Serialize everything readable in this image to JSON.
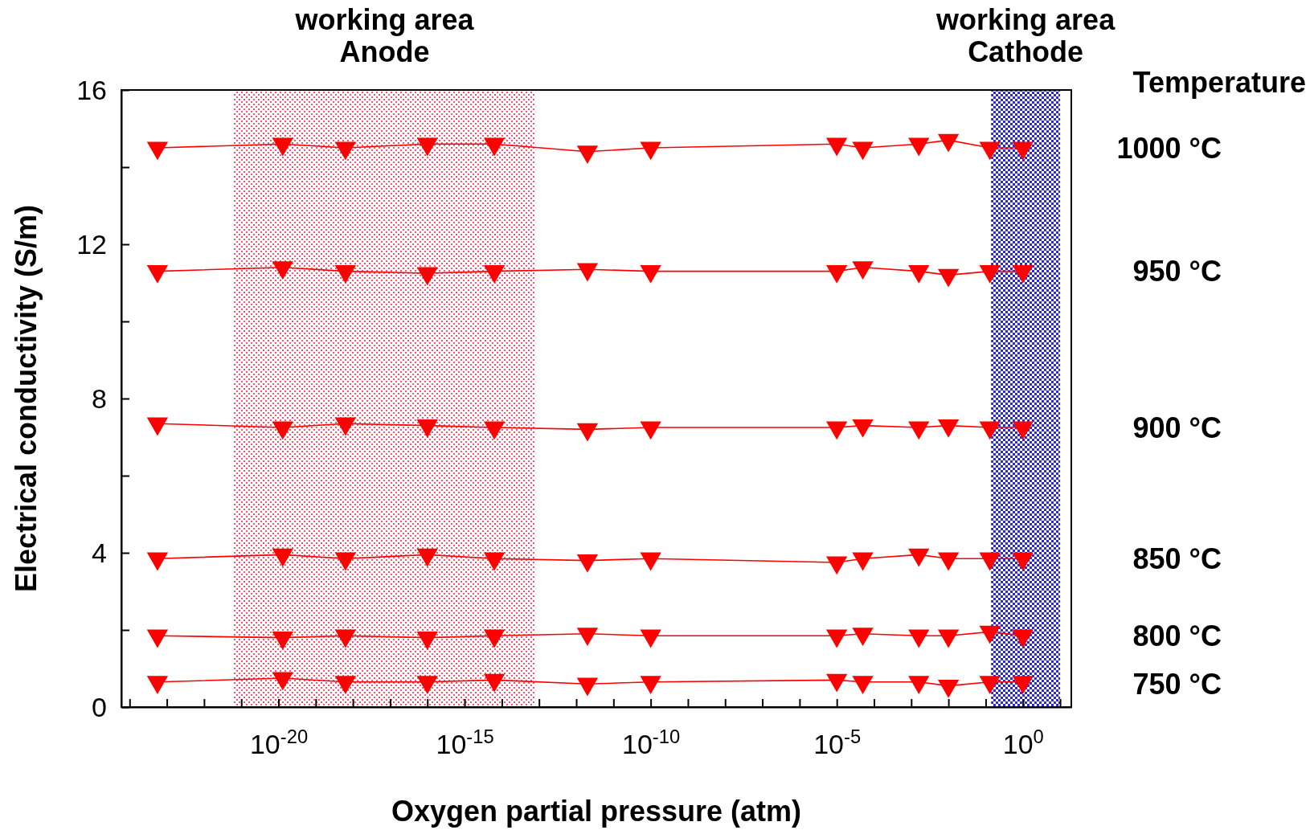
{
  "chart_data": {
    "type": "line",
    "xlabel": "Oxygen partial pressure  (atm)",
    "ylabel": "Electrical conductivity  (S/m)",
    "legend_title": "Temperature",
    "log": "x",
    "marker": "triangle-down",
    "line_style": "solid",
    "grid": false,
    "legend": "right",
    "x": [
      5.6e-24,
      1.3e-20,
      6.3e-19,
      1e-16,
      6.3e-15,
      2e-12,
      1e-10,
      1e-05,
      5e-05,
      0.0016,
      0.01,
      0.13,
      1
    ],
    "xlim": [
      6e-25,
      20
    ],
    "xticks": [
      {
        "value": 1e-24,
        "label": null
      },
      {
        "value": 1e-23,
        "label": null
      },
      {
        "value": 1e-22,
        "label": null
      },
      {
        "value": 1e-21,
        "label": null
      },
      {
        "value": 1e-20,
        "label": "10$^{-20}$"
      },
      {
        "value": 1e-19,
        "label": null
      },
      {
        "value": 1e-18,
        "label": null
      },
      {
        "value": 1e-17,
        "label": null
      },
      {
        "value": 1e-16,
        "label": null
      },
      {
        "value": 1e-15,
        "label": "10$^{-15}$"
      },
      {
        "value": 1e-14,
        "label": null
      },
      {
        "value": 1e-13,
        "label": null
      },
      {
        "value": 1e-12,
        "label": null
      },
      {
        "value": 1e-11,
        "label": null
      },
      {
        "value": 1e-10,
        "label": "10$^{-10}$"
      },
      {
        "value": 1e-09,
        "label": null
      },
      {
        "value": 1e-08,
        "label": null
      },
      {
        "value": 1e-07,
        "label": null
      },
      {
        "value": 1e-06,
        "label": null
      },
      {
        "value": 1e-05,
        "label": "10$^{-5}$"
      },
      {
        "value": 0.0001,
        "label": null
      },
      {
        "value": 0.001,
        "label": null
      },
      {
        "value": 0.01,
        "label": null
      },
      {
        "value": 0.1,
        "label": null
      },
      {
        "value": 1,
        "label": "10$^{0}$"
      },
      {
        "value": 10,
        "label": null
      }
    ],
    "ylim": [
      0,
      16
    ],
    "yticks": [
      0,
      {
        "value": 2,
        "label": null
      },
      4,
      {
        "value": 6,
        "label": null
      },
      8,
      {
        "value": 10,
        "label": null
      },
      12,
      {
        "value": 14,
        "label": null
      },
      16
    ],
    "bands": [
      {
        "axis": "x",
        "from": 6.3e-22,
        "to": 8e-14,
        "label": "working area\nAnode",
        "color": "#ff5070"
      },
      {
        "axis": "x",
        "from": 0.14,
        "to": 10,
        "label": "working area\nCathode",
        "color": "#2a2ad0"
      }
    ],
    "series": [
      {
        "name": "1000 °C",
        "color": "#ff0000",
        "values": [
          14.5,
          14.6,
          14.5,
          14.6,
          14.6,
          14.4,
          14.5,
          14.6,
          14.5,
          14.6,
          14.7,
          14.5,
          14.5
        ]
      },
      {
        "name": "950 °C",
        "color": "#ff0000",
        "values": [
          11.3,
          11.4,
          11.3,
          11.25,
          11.3,
          11.35,
          11.3,
          11.3,
          11.4,
          11.3,
          11.2,
          11.3,
          11.3
        ]
      },
      {
        "name": "900 °C",
        "color": "#ff0000",
        "values": [
          7.35,
          7.25,
          7.35,
          7.3,
          7.25,
          7.2,
          7.25,
          7.25,
          7.3,
          7.25,
          7.3,
          7.25,
          7.25
        ]
      },
      {
        "name": "850 °C",
        "color": "#ff0000",
        "values": [
          3.85,
          3.95,
          3.85,
          3.95,
          3.85,
          3.8,
          3.85,
          3.75,
          3.85,
          3.95,
          3.85,
          3.85,
          3.85
        ]
      },
      {
        "name": "800 °C",
        "color": "#ff0000",
        "values": [
          1.85,
          1.8,
          1.85,
          1.8,
          1.85,
          1.9,
          1.85,
          1.85,
          1.9,
          1.85,
          1.85,
          1.95,
          1.85
        ]
      },
      {
        "name": "750 °C",
        "color": "#ff0000",
        "values": [
          0.65,
          0.75,
          0.65,
          0.65,
          0.7,
          0.6,
          0.65,
          0.7,
          0.65,
          0.65,
          0.55,
          0.65,
          0.65
        ]
      }
    ]
  }
}
